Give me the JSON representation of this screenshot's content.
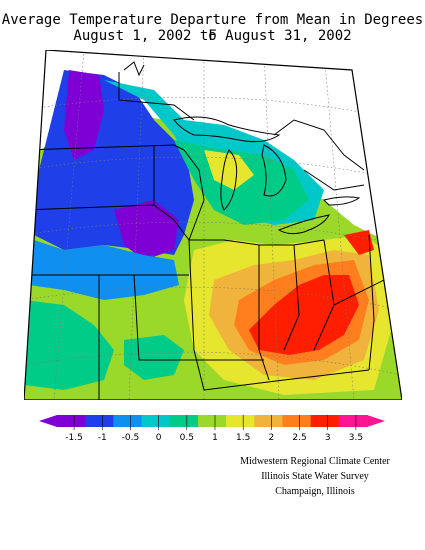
{
  "title": {
    "line1": "Average Temperature Departure from Mean in Degrees F",
    "line2": "August 1, 2002 to August 31, 2002"
  },
  "legend": {
    "ticks": [
      "-1.5",
      "-1",
      "-0.5",
      "0",
      "0.5",
      "1",
      "1.5",
      "2",
      "2.5",
      "3",
      "3.5"
    ],
    "colors": [
      "#7f00d4",
      "#1f3fe8",
      "#0f8ff0",
      "#00c8c8",
      "#00cc88",
      "#9ad82a",
      "#e6e62e",
      "#f0b43c",
      "#ff7f1f",
      "#ff1f00",
      "#ff1493"
    ]
  },
  "credits": [
    "Midwestern Regional Climate Center",
    "Illinois State Water Survey",
    "Champaign, Illinois"
  ],
  "map": {
    "region": "Midwestern United States",
    "field": "average temperature departure (deg F)"
  }
}
